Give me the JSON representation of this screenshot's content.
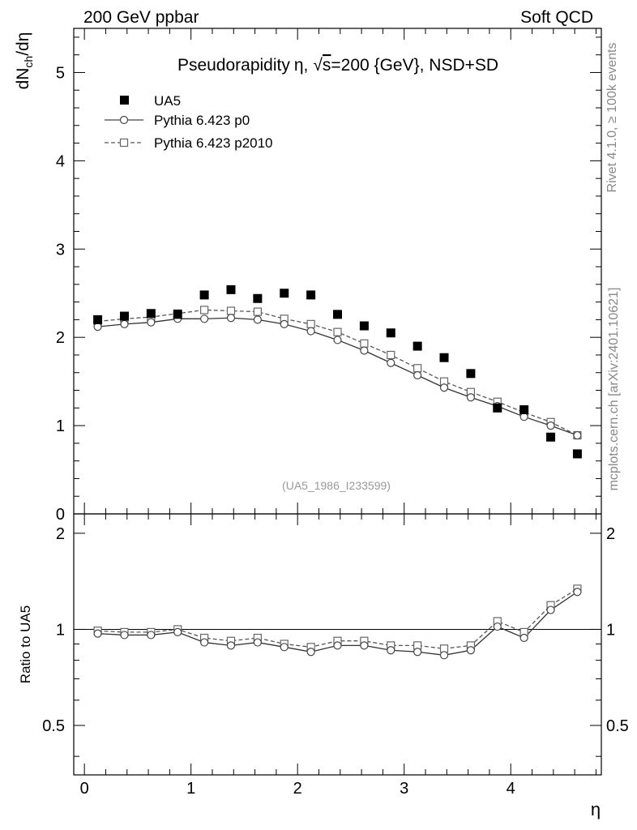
{
  "header": {
    "left": "200 GeV ppbar",
    "right": "Soft QCD"
  },
  "side_labels": {
    "rivet": "Rivet 4.1.0, ≥ 100k events",
    "mcplots": "mcplots.cern.ch [arXiv:2401.10621]"
  },
  "chart_data": {
    "type": "scatter",
    "title": "Pseudorapidity η, √s=200 {GeV}, NSD+SD",
    "title_parts": [
      "Pseudorapidity",
      "η",
      ",",
      "s",
      "=200 {GeV}, NSD+SD"
    ],
    "xlabel": "η",
    "ylabel": "dN_ch/dη",
    "ylabel_parts": [
      "dN",
      "ch",
      "/dη"
    ],
    "ratio_ylabel": "Ratio to UA5",
    "watermark": "(UA5_1986_I233599)",
    "xlim": [
      -0.1,
      4.85
    ],
    "ylim": [
      0,
      5.5
    ],
    "ratio_ylim": [
      0.35,
      2.3
    ],
    "x_ticks": [
      "0",
      "1",
      "2",
      "3",
      "4"
    ],
    "y_ticks": [
      "0",
      "1",
      "2",
      "3",
      "4",
      "5"
    ],
    "ratio_ticks": [
      "0.5",
      "1",
      "2"
    ],
    "legend": [
      {
        "name": "UA5",
        "marker": "filled-square"
      },
      {
        "name": "Pythia 6.423 p0",
        "marker": "open-circle-solid"
      },
      {
        "name": "Pythia 6.423 p2010",
        "marker": "open-square-dashed"
      }
    ],
    "x": [
      0.125,
      0.375,
      0.625,
      0.875,
      1.125,
      1.375,
      1.625,
      1.875,
      2.125,
      2.375,
      2.625,
      2.875,
      3.125,
      3.375,
      3.625,
      3.875,
      4.125,
      4.375,
      4.625
    ],
    "series": [
      {
        "name": "UA5",
        "values": [
          2.2,
          2.24,
          2.27,
          2.26,
          2.48,
          2.54,
          2.44,
          2.5,
          2.48,
          2.26,
          2.13,
          2.05,
          1.9,
          1.77,
          1.59,
          1.2,
          1.18,
          0.87,
          0.68
        ]
      },
      {
        "name": "Pythia 6.423 p0",
        "values": [
          2.12,
          2.15,
          2.17,
          2.21,
          2.21,
          2.22,
          2.2,
          2.15,
          2.07,
          1.97,
          1.85,
          1.71,
          1.57,
          1.43,
          1.32,
          1.22,
          1.1,
          1.0,
          0.89
        ]
      },
      {
        "name": "Pythia 6.423 p2010",
        "values": [
          2.18,
          2.21,
          2.23,
          2.27,
          2.31,
          2.3,
          2.29,
          2.21,
          2.15,
          2.06,
          1.93,
          1.8,
          1.65,
          1.5,
          1.38,
          1.27,
          1.15,
          1.04,
          0.89
        ]
      }
    ],
    "ratio_series": [
      {
        "name": "Pythia 6.423 p0",
        "values": [
          0.97,
          0.96,
          0.96,
          0.98,
          0.91,
          0.89,
          0.91,
          0.88,
          0.85,
          0.89,
          0.89,
          0.86,
          0.85,
          0.83,
          0.86,
          1.02,
          0.94,
          1.15,
          1.31
        ]
      },
      {
        "name": "Pythia 6.423 p2010",
        "values": [
          0.99,
          0.98,
          0.98,
          1.0,
          0.94,
          0.92,
          0.94,
          0.9,
          0.88,
          0.92,
          0.92,
          0.89,
          0.89,
          0.87,
          0.89,
          1.06,
          0.98,
          1.19,
          1.34
        ]
      }
    ]
  }
}
